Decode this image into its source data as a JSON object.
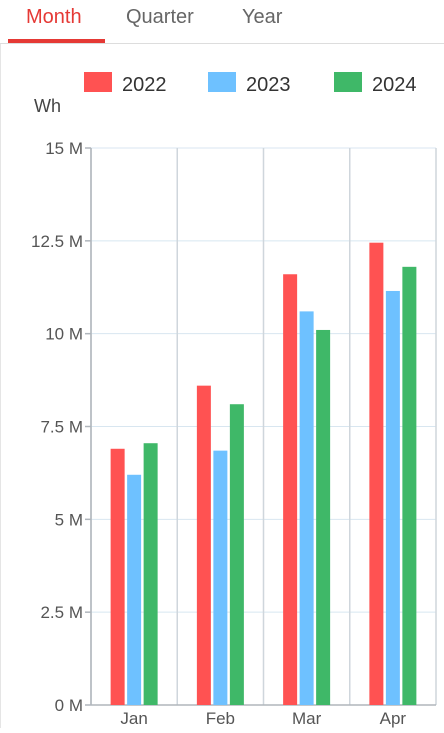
{
  "tabs": {
    "items": [
      {
        "label": "Month",
        "active": true
      },
      {
        "label": "Quarter",
        "active": false
      },
      {
        "label": "Year",
        "active": false
      }
    ]
  },
  "colors": {
    "accent": "#e53935",
    "series_2022": "#ff5252",
    "series_2023": "#6ec1ff",
    "series_2024": "#3fb868"
  },
  "chart_data": {
    "type": "bar",
    "title": "",
    "ylabel": "Wh",
    "xlabel": "",
    "ylim": [
      0,
      15000000
    ],
    "yticks": [
      "0 M",
      "2.5 M",
      "5 M",
      "7.5 M",
      "10 M",
      "12.5 M",
      "15 M"
    ],
    "categories": [
      "Jan",
      "Feb",
      "Mar",
      "Apr"
    ],
    "legend_position": "top",
    "grid": true,
    "series": [
      {
        "name": "2022",
        "color": "#ff5252",
        "values": [
          6900000,
          8600000,
          11600000,
          12450000
        ]
      },
      {
        "name": "2023",
        "color": "#6ec1ff",
        "values": [
          6200000,
          6850000,
          10600000,
          11150000
        ]
      },
      {
        "name": "2024",
        "color": "#3fb868",
        "values": [
          7050000,
          8100000,
          10100000,
          11800000
        ]
      }
    ]
  }
}
